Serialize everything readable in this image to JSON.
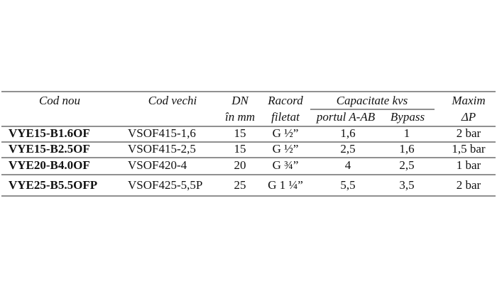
{
  "table": {
    "header": [
      [
        "Cod nou",
        "Cod vechi",
        "DN",
        "Racord",
        "Capacitate kvs",
        "Maxim"
      ],
      [
        "în mm",
        "filetat",
        "portul A-AB",
        "Bypass",
        "ΔP"
      ]
    ],
    "rows": [
      [
        "VYE15-B1.6OF",
        "VSOF415-1,6",
        "15",
        "G ½”",
        "1,6",
        "1",
        "2 bar"
      ],
      [
        "VYE15-B2.5OF",
        "VSOF415-2,5",
        "15",
        "G ½”",
        "2,5",
        "1,6",
        "1,5 bar"
      ],
      [
        "VYE20-B4.0OF",
        "VSOF420-4",
        "20",
        "G ¾”",
        "4",
        "2,5",
        "1 bar"
      ],
      [
        "VYE25-B5.5OFP",
        "VSOF425-5,5P",
        "25",
        "G 1 ¼”",
        "5,5",
        "3,5",
        "2 bar"
      ]
    ]
  }
}
